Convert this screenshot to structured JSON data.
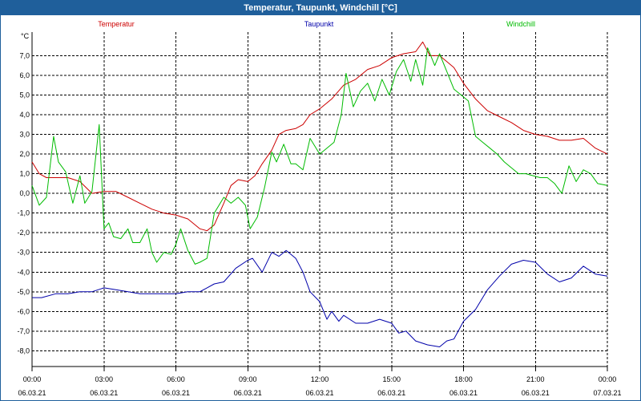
{
  "window": {
    "title": "Temperatur, Taupunkt, Windchill [°C]"
  },
  "colors": {
    "titlebar": "#1f5f9b",
    "temperature": "#cc0000",
    "dewpoint": "#0000aa",
    "windchill": "#00bb00",
    "grid": "#000000"
  },
  "chart_data": {
    "type": "line",
    "title": "Temperatur, Taupunkt, Windchill [°C]",
    "ylabel": "°C",
    "ylim": [
      -8.8,
      8.2
    ],
    "yticks": [
      -8.0,
      -7.0,
      -6.0,
      -5.0,
      -4.0,
      -3.0,
      -2.0,
      -1.0,
      0.0,
      1.0,
      2.0,
      3.0,
      4.0,
      5.0,
      6.0,
      7.0
    ],
    "ytick_labels": [
      "-8,0",
      "-7,0",
      "-6,0",
      "-5,0",
      "-4,0",
      "-3,0",
      "-2,0",
      "-1,0",
      "0,0",
      "1,0",
      "2,0",
      "3,0",
      "4,0",
      "5,0",
      "6,0",
      "7,0"
    ],
    "xlim": [
      0,
      24
    ],
    "xticks": [
      {
        "h": 0,
        "time": "00:00",
        "date": "06.03.21"
      },
      {
        "h": 3,
        "time": "03:00",
        "date": "06.03.21"
      },
      {
        "h": 6,
        "time": "06:00",
        "date": "06.03.21"
      },
      {
        "h": 9,
        "time": "09:00",
        "date": "06.03.21"
      },
      {
        "h": 12,
        "time": "12:00",
        "date": "06.03.21"
      },
      {
        "h": 15,
        "time": "15:00",
        "date": "06.03.21"
      },
      {
        "h": 18,
        "time": "18:00",
        "date": "06.03.21"
      },
      {
        "h": 21,
        "time": "21:00",
        "date": "06.03.21"
      },
      {
        "h": 24,
        "time": "00:00",
        "date": "07.03.21"
      }
    ],
    "grid": true,
    "legend": [
      "Temperatur",
      "Taupunkt",
      "Windchill"
    ],
    "series": [
      {
        "name": "Temperatur",
        "x": [
          0,
          0.3,
          0.6,
          1,
          1.5,
          2,
          2.5,
          3,
          3.5,
          4,
          4.5,
          5,
          5.5,
          6,
          6.5,
          7,
          7.3,
          7.6,
          8,
          8.3,
          8.6,
          9,
          9.3,
          9.6,
          10,
          10.3,
          10.6,
          11,
          11.3,
          11.6,
          12,
          12.5,
          13,
          13.5,
          14,
          14.5,
          15,
          15.5,
          16,
          16.3,
          16.6,
          17,
          17.3,
          17.6,
          18,
          18.5,
          19,
          19.5,
          20,
          20.5,
          21,
          21.5,
          22,
          22.5,
          23,
          23.5,
          24
        ],
        "y": [
          1.6,
          1.0,
          0.8,
          0.8,
          0.8,
          0.6,
          0.0,
          0.1,
          0.1,
          -0.2,
          -0.5,
          -0.8,
          -1.0,
          -1.1,
          -1.3,
          -1.8,
          -1.9,
          -1.6,
          -0.5,
          0.4,
          0.7,
          0.6,
          0.9,
          1.5,
          2.2,
          3.0,
          3.2,
          3.3,
          3.5,
          4.0,
          4.3,
          4.8,
          5.5,
          5.8,
          6.3,
          6.5,
          6.9,
          7.1,
          7.2,
          7.7,
          7.0,
          7.0,
          6.7,
          6.4,
          5.6,
          4.8,
          4.2,
          3.9,
          3.6,
          3.2,
          3.0,
          2.9,
          2.7,
          2.7,
          2.8,
          2.3,
          2.0
        ]
      },
      {
        "name": "Taupunkt",
        "x": [
          0,
          0.4,
          1,
          1.5,
          2,
          2.5,
          3,
          3.5,
          4,
          4.5,
          5,
          5.5,
          6,
          6.5,
          7,
          7.3,
          7.6,
          8,
          8.5,
          9,
          9.2,
          9.6,
          10,
          10.3,
          10.6,
          11,
          11.3,
          11.6,
          12,
          12.3,
          12.5,
          12.8,
          13,
          13.5,
          14,
          14.5,
          15,
          15.3,
          15.6,
          16,
          16.5,
          17,
          17.3,
          17.6,
          18,
          18.5,
          19,
          19.5,
          20,
          20.5,
          21,
          21.5,
          22,
          22.5,
          23,
          23.5,
          24
        ],
        "y": [
          -5.3,
          -5.3,
          -5.1,
          -5.1,
          -5.0,
          -5.0,
          -4.8,
          -4.9,
          -5.0,
          -5.1,
          -5.1,
          -5.1,
          -5.1,
          -5.0,
          -5.0,
          -4.8,
          -4.6,
          -4.5,
          -3.8,
          -3.4,
          -3.3,
          -4.0,
          -3.0,
          -3.2,
          -2.9,
          -3.3,
          -4.0,
          -5.0,
          -5.5,
          -6.4,
          -6.0,
          -6.5,
          -6.2,
          -6.6,
          -6.6,
          -6.4,
          -6.6,
          -7.1,
          -7.0,
          -7.5,
          -7.7,
          -7.8,
          -7.5,
          -7.4,
          -6.5,
          -5.9,
          -4.9,
          -4.2,
          -3.6,
          -3.4,
          -3.5,
          -4.1,
          -4.5,
          -4.3,
          -3.7,
          -4.1,
          -4.2
        ]
      },
      {
        "name": "Windchill",
        "x": [
          0,
          0.3,
          0.6,
          0.9,
          1.1,
          1.4,
          1.7,
          2,
          2.2,
          2.5,
          2.8,
          3,
          3.2,
          3.4,
          3.7,
          4,
          4.2,
          4.5,
          4.8,
          5,
          5.2,
          5.5,
          5.8,
          6,
          6.2,
          6.5,
          6.8,
          7,
          7.3,
          7.6,
          8,
          8.3,
          8.6,
          8.9,
          9.1,
          9.4,
          9.7,
          10,
          10.2,
          10.5,
          10.8,
          11,
          11.3,
          11.6,
          12,
          12.3,
          12.6,
          12.9,
          13.1,
          13.4,
          13.7,
          14,
          14.3,
          14.6,
          14.9,
          15.2,
          15.5,
          15.8,
          16,
          16.3,
          16.5,
          16.8,
          17,
          17.3,
          17.6,
          17.9,
          18.2,
          18.5,
          18.8,
          19.1,
          19.4,
          19.7,
          20,
          20.3,
          20.6,
          20.9,
          21.2,
          21.5,
          21.8,
          22.1,
          22.4,
          22.7,
          23,
          23.3,
          23.6,
          24
        ],
        "y": [
          0.4,
          -0.6,
          -0.2,
          2.9,
          1.6,
          1.1,
          -0.5,
          0.9,
          -0.5,
          0.1,
          3.5,
          -1.8,
          -1.5,
          -2.2,
          -2.3,
          -1.8,
          -2.5,
          -2.5,
          -1.8,
          -3.0,
          -3.5,
          -3.0,
          -3.1,
          -2.6,
          -1.8,
          -2.9,
          -3.6,
          -3.5,
          -3.3,
          -1.0,
          -0.2,
          -0.5,
          -0.2,
          -0.6,
          -1.8,
          -1.2,
          0.3,
          2.1,
          1.6,
          2.5,
          1.5,
          1.5,
          1.2,
          2.8,
          2.0,
          2.3,
          2.6,
          4.0,
          6.1,
          4.4,
          5.2,
          5.6,
          4.7,
          5.8,
          5.0,
          6.2,
          6.8,
          5.7,
          6.8,
          5.5,
          7.4,
          6.5,
          7.1,
          6.2,
          5.3,
          5.0,
          4.7,
          2.9,
          2.6,
          2.3,
          2.0,
          1.6,
          1.3,
          1.0,
          1.0,
          0.9,
          0.8,
          0.8,
          0.5,
          0.0,
          1.4,
          0.6,
          1.2,
          1.0,
          0.5,
          0.4
        ]
      }
    ]
  }
}
